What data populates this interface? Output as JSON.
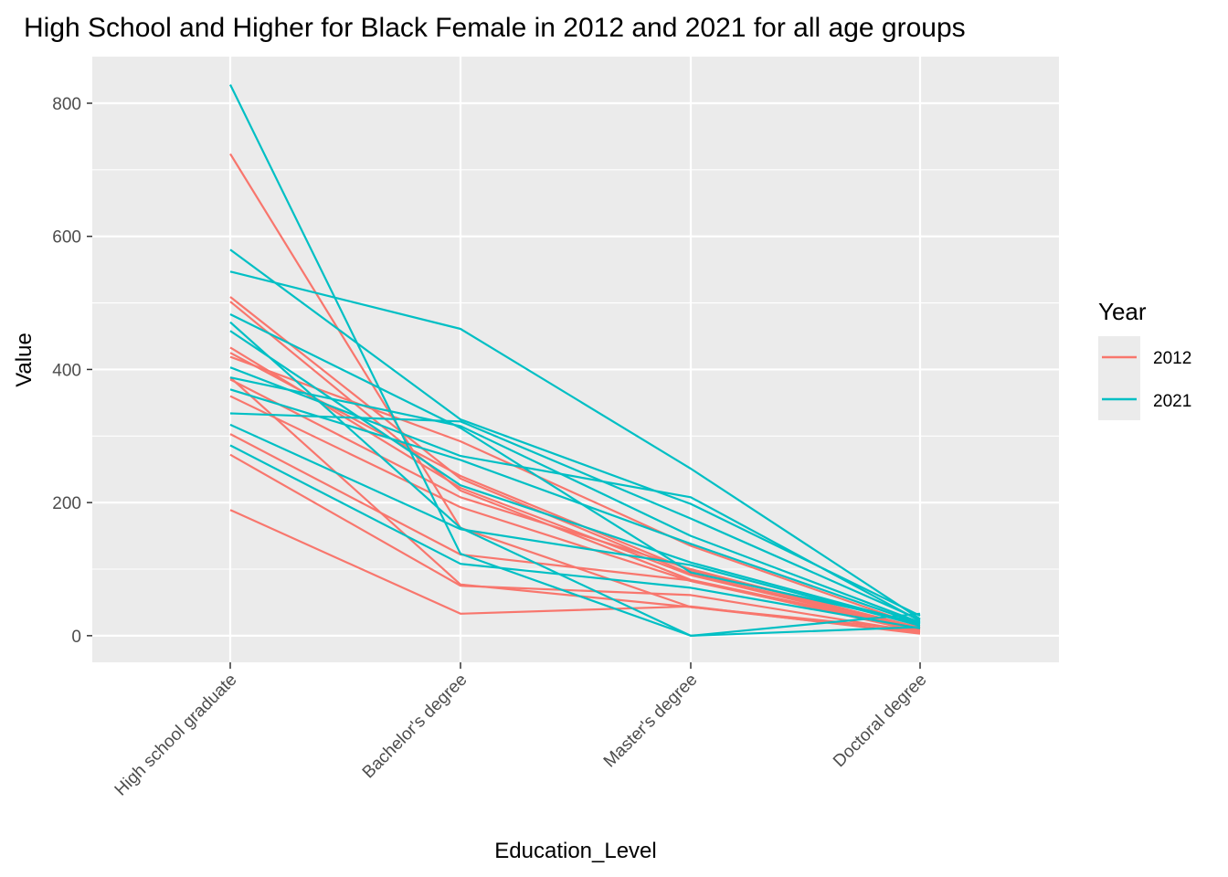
{
  "chart_data": {
    "type": "line",
    "title": "High School and Higher for Black Female in 2012 and 2021 for all age groups",
    "xlabel": "Education_Level",
    "ylabel": "Value",
    "categories": [
      "High school graduate",
      "Bachelor's degree",
      "Master's degree",
      "Doctoral degree"
    ],
    "ylim": [
      -40,
      870
    ],
    "yticks": [
      0,
      200,
      400,
      600,
      800
    ],
    "ytick_labels": [
      "0",
      "200",
      "400",
      "600",
      "800"
    ],
    "grid": true,
    "legend": {
      "title": "Year",
      "position": "right",
      "entries": [
        {
          "label": "2012",
          "color": "#F8766D"
        },
        {
          "label": "2021",
          "color": "#00BFC4"
        }
      ]
    },
    "series": [
      {
        "group": "2012",
        "color": "#F8766D",
        "values": [
          724,
          162,
          43,
          8
        ]
      },
      {
        "group": "2012",
        "color": "#F8766D",
        "values": [
          509,
          236,
          93,
          12
        ]
      },
      {
        "group": "2012",
        "color": "#F8766D",
        "values": [
          502,
          218,
          84,
          10
        ]
      },
      {
        "group": "2012",
        "color": "#F8766D",
        "values": [
          433,
          222,
          91,
          9
        ]
      },
      {
        "group": "2012",
        "color": "#F8766D",
        "values": [
          425,
          240,
          98,
          12
        ]
      },
      {
        "group": "2012",
        "color": "#F8766D",
        "values": [
          419,
          292,
          135,
          14
        ]
      },
      {
        "group": "2012",
        "color": "#F8766D",
        "values": [
          385,
          208,
          100,
          11
        ]
      },
      {
        "group": "2012",
        "color": "#F8766D",
        "values": [
          360,
          193,
          82,
          8
        ]
      },
      {
        "group": "2012",
        "color": "#F8766D",
        "values": [
          303,
          122,
          83,
          6
        ]
      },
      {
        "group": "2012",
        "color": "#F8766D",
        "values": [
          272,
          75,
          61,
          5
        ]
      },
      {
        "group": "2012",
        "color": "#F8766D",
        "values": [
          189,
          33,
          44,
          3
        ]
      },
      {
        "group": "2012",
        "color": "#F8766D",
        "values": [
          388,
          77,
          43,
          4
        ]
      },
      {
        "group": "2021",
        "color": "#00BFC4",
        "values": [
          828,
          123,
          0,
          33
        ]
      },
      {
        "group": "2021",
        "color": "#00BFC4",
        "values": [
          580,
          325,
          198,
          30
        ]
      },
      {
        "group": "2021",
        "color": "#00BFC4",
        "values": [
          547,
          461,
          251,
          25
        ]
      },
      {
        "group": "2021",
        "color": "#00BFC4",
        "values": [
          483,
          312,
          95,
          19
        ]
      },
      {
        "group": "2021",
        "color": "#00BFC4",
        "values": [
          471,
          162,
          0,
          13
        ]
      },
      {
        "group": "2021",
        "color": "#00BFC4",
        "values": [
          458,
          226,
          110,
          17
        ]
      },
      {
        "group": "2021",
        "color": "#00BFC4",
        "values": [
          403,
          270,
          208,
          22
        ]
      },
      {
        "group": "2021",
        "color": "#00BFC4",
        "values": [
          388,
          315,
          150,
          20
        ]
      },
      {
        "group": "2021",
        "color": "#00BFC4",
        "values": [
          370,
          264,
          138,
          18
        ]
      },
      {
        "group": "2021",
        "color": "#00BFC4",
        "values": [
          334,
          322,
          176,
          24
        ]
      },
      {
        "group": "2021",
        "color": "#00BFC4",
        "values": [
          317,
          160,
          106,
          15
        ]
      },
      {
        "group": "2021",
        "color": "#00BFC4",
        "values": [
          286,
          108,
          72,
          11
        ]
      }
    ]
  }
}
